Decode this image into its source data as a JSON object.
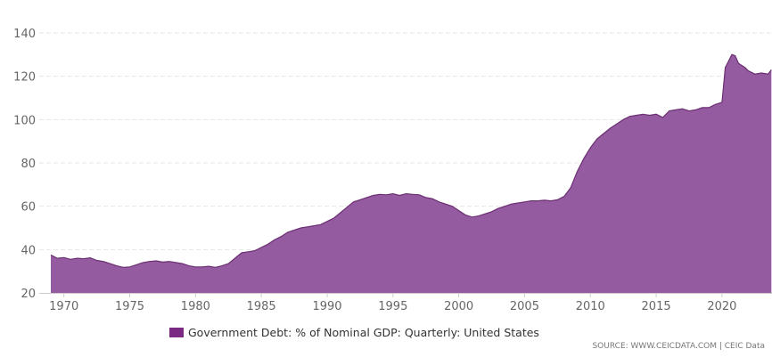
{
  "chart_data": {
    "type": "area",
    "title": "",
    "xlabel": "",
    "ylabel": "",
    "xlim": [
      1968.8,
      2023.8
    ],
    "ylim": [
      20,
      140
    ],
    "yticks": [
      20,
      40,
      60,
      80,
      100,
      120,
      140
    ],
    "xticks": [
      1970,
      1975,
      1980,
      1985,
      1990,
      1995,
      2000,
      2005,
      2010,
      2015,
      2020
    ],
    "grid": "horizontal dashed",
    "legend_position": "bottom",
    "colors": {
      "fill": "#955ba0",
      "stroke": "#6b2f72",
      "swatch": "#7a2a82",
      "grid": "#e6e6e6"
    },
    "series": [
      {
        "name": "Government Debt: % of Nominal GDP: Quarterly: United States",
        "x": [
          1969.0,
          1969.5,
          1970.0,
          1970.5,
          1971.0,
          1971.5,
          1972.0,
          1972.5,
          1973.0,
          1973.5,
          1974.0,
          1974.5,
          1975.0,
          1975.5,
          1976.0,
          1976.5,
          1977.0,
          1977.5,
          1978.0,
          1978.5,
          1979.0,
          1979.5,
          1980.0,
          1980.5,
          1981.0,
          1981.5,
          1982.0,
          1982.5,
          1983.0,
          1983.5,
          1984.0,
          1984.5,
          1985.0,
          1985.5,
          1986.0,
          1986.5,
          1987.0,
          1987.5,
          1988.0,
          1988.5,
          1989.0,
          1989.5,
          1990.0,
          1990.5,
          1991.0,
          1991.5,
          1992.0,
          1992.5,
          1993.0,
          1993.5,
          1994.0,
          1994.5,
          1995.0,
          1995.5,
          1996.0,
          1996.5,
          1997.0,
          1997.5,
          1998.0,
          1998.5,
          1999.0,
          1999.5,
          2000.0,
          2000.5,
          2001.0,
          2001.5,
          2002.0,
          2002.5,
          2003.0,
          2003.5,
          2004.0,
          2004.5,
          2005.0,
          2005.5,
          2006.0,
          2006.5,
          2007.0,
          2007.5,
          2008.0,
          2008.5,
          2009.0,
          2009.5,
          2010.0,
          2010.5,
          2011.0,
          2011.5,
          2012.0,
          2012.5,
          2013.0,
          2013.5,
          2014.0,
          2014.5,
          2015.0,
          2015.5,
          2016.0,
          2016.5,
          2017.0,
          2017.5,
          2018.0,
          2018.5,
          2019.0,
          2019.5,
          2020.0,
          2020.25,
          2020.5,
          2020.75,
          2021.0,
          2021.25,
          2021.5,
          2021.75,
          2022.0,
          2022.5,
          2023.0,
          2023.5,
          2023.75
        ],
        "values": [
          37.5,
          36.0,
          36.3,
          35.5,
          36.0,
          35.8,
          36.2,
          35.0,
          34.5,
          33.5,
          32.5,
          31.8,
          32.0,
          33.0,
          34.0,
          34.5,
          34.8,
          34.2,
          34.5,
          34.0,
          33.5,
          32.5,
          32.0,
          32.0,
          32.3,
          31.8,
          32.5,
          33.5,
          36.0,
          38.5,
          39.0,
          39.5,
          41.0,
          42.5,
          44.5,
          46.0,
          48.0,
          49.0,
          50.0,
          50.5,
          51.0,
          51.5,
          53.0,
          54.5,
          57.0,
          59.5,
          62.0,
          63.0,
          64.0,
          65.0,
          65.5,
          65.3,
          65.8,
          65.0,
          65.8,
          65.5,
          65.3,
          64.0,
          63.5,
          62.0,
          61.0,
          60.0,
          58.0,
          56.0,
          55.0,
          55.5,
          56.5,
          57.5,
          59.0,
          60.0,
          61.0,
          61.5,
          62.0,
          62.5,
          62.5,
          62.8,
          62.5,
          63.0,
          64.5,
          68.5,
          76.0,
          82.0,
          87.0,
          91.0,
          93.5,
          96.0,
          98.0,
          100.0,
          101.5,
          102.0,
          102.5,
          102.0,
          102.5,
          101.0,
          104.0,
          104.5,
          105.0,
          104.0,
          104.5,
          105.5,
          105.5,
          107.0,
          108.0,
          124.0,
          127.0,
          130.0,
          129.5,
          126.0,
          125.0,
          124.0,
          122.5,
          121.0,
          121.5,
          121.0,
          123.0
        ]
      }
    ]
  },
  "legend": {
    "label": "Government Debt: % of Nominal GDP: Quarterly: United States"
  },
  "source_text": "SOURCE: WWW.CEICDATA.COM | CEIC Data"
}
